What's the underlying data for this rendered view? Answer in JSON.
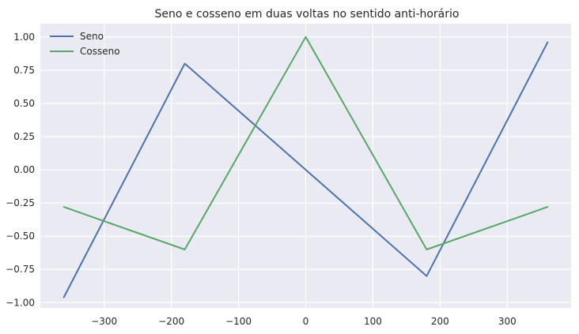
{
  "chart_data": {
    "type": "line",
    "title": "Seno e cosseno em duas voltas no sentido anti-horário",
    "xlabel": "",
    "ylabel": "",
    "xlim": [
      -395,
      395
    ],
    "ylim": [
      -1.04,
      1.1
    ],
    "xticks": [
      -300,
      -200,
      -100,
      0,
      100,
      200,
      300
    ],
    "xtick_labels": [
      "−300",
      "−200",
      "−100",
      "0",
      "100",
      "200",
      "300"
    ],
    "yticks": [
      -1.0,
      -0.75,
      -0.5,
      -0.25,
      0.0,
      0.25,
      0.5,
      0.75,
      1.0
    ],
    "ytick_labels": [
      "−1.00",
      "−0.75",
      "−0.50",
      "−0.25",
      "0.00",
      "0.25",
      "0.50",
      "0.75",
      "1.00"
    ],
    "grid": true,
    "legend_position": "top-left",
    "x": [
      -360,
      -180,
      0,
      180,
      360
    ],
    "series": [
      {
        "name": "Seno",
        "color": "#4c72b0",
        "values": [
          -0.96,
          0.8,
          0.0,
          -0.8,
          0.96
        ]
      },
      {
        "name": "Cosseno",
        "color": "#55a868",
        "values": [
          -0.28,
          -0.6,
          1.0,
          -0.6,
          -0.28
        ]
      }
    ]
  }
}
